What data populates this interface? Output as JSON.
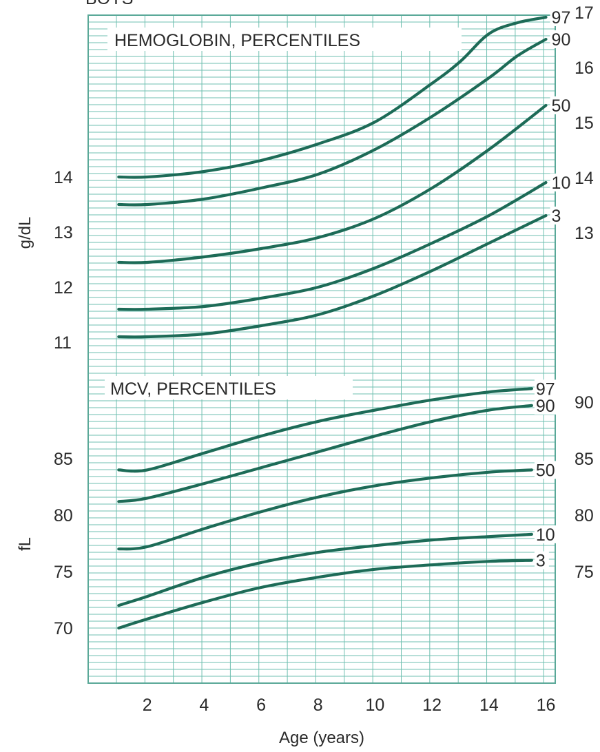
{
  "header_text": "BOYS",
  "chart_data": [
    {
      "type": "line",
      "title": "HEMOGLOBIN, PERCENTILES",
      "xlabel": "Age (years)",
      "ylabel": "g/dL",
      "xlim": [
        0,
        17
      ],
      "ylim": [
        10,
        17
      ],
      "left_ticks": [
        "11",
        "12",
        "13",
        "14"
      ],
      "right_ticks": [
        "13",
        "14",
        "15",
        "16",
        "17"
      ],
      "series": [
        {
          "name": "97",
          "x": [
            1,
            2,
            4,
            6,
            8,
            10,
            12,
            13,
            14,
            15,
            16
          ],
          "values": [
            14.0,
            14.0,
            14.1,
            14.3,
            14.6,
            15.0,
            15.7,
            16.1,
            16.6,
            16.8,
            16.9
          ]
        },
        {
          "name": "90",
          "x": [
            1,
            2,
            4,
            6,
            8,
            10,
            12,
            14,
            15,
            16
          ],
          "values": [
            13.5,
            13.5,
            13.6,
            13.8,
            14.05,
            14.5,
            15.1,
            15.8,
            16.2,
            16.5
          ]
        },
        {
          "name": "50",
          "x": [
            1,
            2,
            4,
            6,
            8,
            10,
            12,
            14,
            16
          ],
          "values": [
            12.45,
            12.45,
            12.55,
            12.7,
            12.9,
            13.25,
            13.8,
            14.5,
            15.3
          ]
        },
        {
          "name": "10",
          "x": [
            1,
            2,
            4,
            6,
            8,
            10,
            12,
            14,
            16
          ],
          "values": [
            11.6,
            11.6,
            11.65,
            11.8,
            12.0,
            12.35,
            12.8,
            13.3,
            13.9
          ]
        },
        {
          "name": "3",
          "x": [
            1,
            2,
            4,
            6,
            8,
            10,
            12,
            14,
            16
          ],
          "values": [
            11.1,
            11.1,
            11.15,
            11.3,
            11.5,
            11.85,
            12.3,
            12.8,
            13.3
          ]
        }
      ]
    },
    {
      "type": "line",
      "title": "MCV, PERCENTILES",
      "xlabel": "Age (years)",
      "ylabel": "fL",
      "xlim": [
        0,
        17
      ],
      "ylim": [
        65,
        92.5
      ],
      "xticks": [
        "2",
        "4",
        "6",
        "8",
        "10",
        "12",
        "14",
        "16"
      ],
      "left_ticks": [
        "70",
        "75",
        "80",
        "85"
      ],
      "right_ticks": [
        "75",
        "80",
        "85",
        "90"
      ],
      "series": [
        {
          "name": "97",
          "x": [
            1,
            2,
            4,
            6,
            8,
            10,
            12,
            14,
            15.5
          ],
          "values": [
            84.0,
            84.0,
            85.5,
            87.0,
            88.3,
            89.3,
            90.2,
            90.9,
            91.2
          ]
        },
        {
          "name": "90",
          "x": [
            1,
            2,
            4,
            6,
            8,
            10,
            12,
            14,
            15.5
          ],
          "values": [
            81.2,
            81.5,
            82.8,
            84.2,
            85.6,
            87.0,
            88.3,
            89.3,
            89.7
          ]
        },
        {
          "name": "50",
          "x": [
            1,
            2,
            4,
            6,
            8,
            10,
            12,
            14,
            15.5
          ],
          "values": [
            77.0,
            77.2,
            78.8,
            80.3,
            81.6,
            82.6,
            83.3,
            83.8,
            84.0
          ]
        },
        {
          "name": "10",
          "x": [
            1,
            2,
            4,
            6,
            8,
            10,
            12,
            14,
            15.5
          ],
          "values": [
            72.0,
            72.8,
            74.5,
            75.8,
            76.7,
            77.3,
            77.8,
            78.1,
            78.3
          ]
        },
        {
          "name": "3",
          "x": [
            1,
            2,
            4,
            6,
            8,
            10,
            12,
            14,
            15.5
          ],
          "values": [
            70.0,
            70.8,
            72.3,
            73.6,
            74.5,
            75.2,
            75.6,
            75.9,
            76.0
          ]
        }
      ]
    }
  ]
}
